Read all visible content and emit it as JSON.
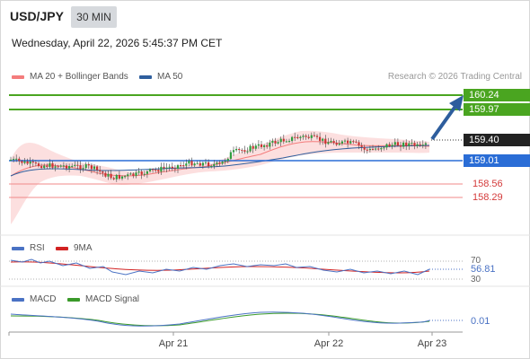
{
  "header": {
    "symbol": "USD/JPY",
    "timeframe": "30 MIN",
    "datetime": "Wednesday, April 22, 2026 5:45:37 PM CET"
  },
  "main_chart": {
    "legend": [
      {
        "label": "MA 20 + Bollinger Bands",
        "color": "#f47c7c"
      },
      {
        "label": "MA 50",
        "color": "#2f5f9e"
      }
    ],
    "credit": "Research © 2026 Trading Central",
    "levels": [
      {
        "label": "160.24",
        "kind": "green-box",
        "value": 160.24
      },
      {
        "label": "159.97",
        "kind": "green-box",
        "value": 159.97
      },
      {
        "label": "159.40",
        "kind": "dark-box",
        "value": 159.4
      },
      {
        "label": "159.01",
        "kind": "blue-box",
        "value": 159.01
      },
      {
        "label": "158.56",
        "kind": "red-text",
        "value": 158.56
      },
      {
        "label": "158.29",
        "kind": "red-text",
        "value": 158.29
      }
    ],
    "colors": {
      "resistance": "#4aa520",
      "support": "#e04848",
      "pivot": "#2a6dd6",
      "arrow": "#2d5d9d",
      "band": "#fbd9d9",
      "candle_up": "#2f9e3f",
      "candle_down": "#cc3333"
    }
  },
  "rsi_panel": {
    "legend": [
      {
        "label": "RSI",
        "color": "#4a72c4"
      },
      {
        "label": "9MA",
        "color": "#d22222"
      }
    ],
    "levels": [
      "70",
      "30"
    ],
    "value": "56.81"
  },
  "macd_panel": {
    "legend": [
      {
        "label": "MACD",
        "color": "#4a72c4"
      },
      {
        "label": "MACD Signal",
        "color": "#3a9a2a"
      }
    ],
    "value": "0.01"
  },
  "x_axis": {
    "labels": [
      "Apr 21",
      "Apr 22",
      "Apr 23"
    ]
  }
}
